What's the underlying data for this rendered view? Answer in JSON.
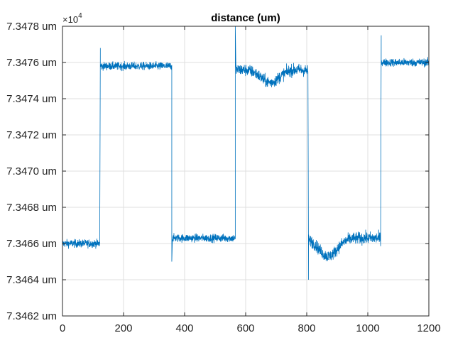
{
  "chart_data": {
    "type": "line",
    "title": "distance (um)",
    "xlabel": "",
    "ylabel": "",
    "exponent_base": "×10",
    "exponent_power": "4",
    "xlim": [
      0,
      1200
    ],
    "ylim": [
      7.3462,
      7.3478
    ],
    "xticks": [
      0,
      200,
      400,
      600,
      800,
      1000,
      1200
    ],
    "xtick_labels": [
      "0",
      "200",
      "400",
      "600",
      "800",
      "1000",
      "1200"
    ],
    "yticks": [
      7.3462,
      7.3464,
      7.3466,
      7.3468,
      7.347,
      7.3472,
      7.3474,
      7.3476,
      7.3478
    ],
    "ytick_labels": [
      "7.3462 um",
      "7.3464 um",
      "7.3466 um",
      "7.3468 um",
      "7.3470 um",
      "7.3472 um",
      "7.3474 um",
      "7.3476 um",
      "7.3478 um"
    ],
    "grid": true,
    "line_color": "#0072bd",
    "series": [
      {
        "segments": [
          {
            "x_start": 0,
            "x_end": 122,
            "mean": 7.3466,
            "noise": 2e-05
          },
          {
            "x_start": 124,
            "x_end": 358,
            "mean": 7.34758,
            "noise": 2e-05
          },
          {
            "x_start": 360,
            "x_end": 566,
            "mean": 7.34663,
            "noise": 2e-05
          },
          {
            "x_start": 568,
            "x_end": 804,
            "mean": 7.34756,
            "noise": 3e-05
          },
          {
            "x_start": 806,
            "x_end": 1042,
            "mean": 7.34663,
            "noise": 3e-05
          },
          {
            "x_start": 1044,
            "x_end": 1200,
            "mean": 7.3476,
            "noise": 2e-05
          }
        ],
        "spikes": [
          {
            "x": 124,
            "y": 7.34768
          },
          {
            "x": 358,
            "y": 7.3465
          },
          {
            "x": 566,
            "y": 7.3478
          },
          {
            "x": 806,
            "y": 7.3464
          },
          {
            "x": 1044,
            "y": 7.34775
          }
        ],
        "dips": [
          {
            "x_center": 680,
            "depth": 7e-05,
            "width": 60
          },
          {
            "x_center": 870,
            "depth": 0.0001,
            "width": 60
          }
        ]
      }
    ]
  }
}
